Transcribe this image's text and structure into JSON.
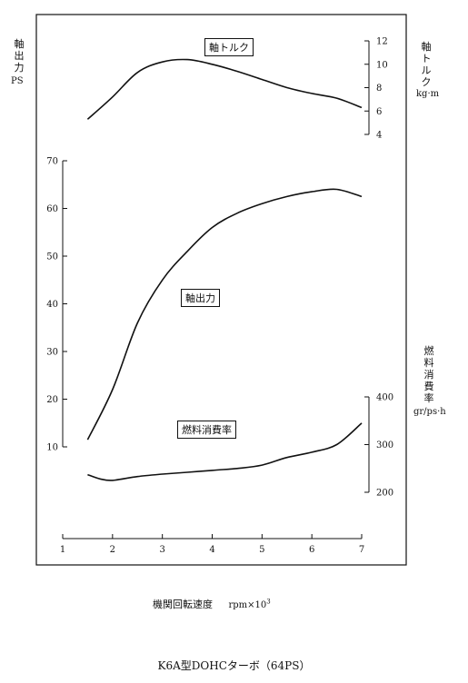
{
  "chart_data": {
    "type": "line",
    "caption": "K6A型DOHCターボ（64PS）",
    "xlabel": "機関回転速度",
    "xunit": "rpm×10",
    "xunit_exp": "3",
    "xticks": [
      1,
      2,
      3,
      4,
      5,
      6,
      7
    ],
    "xlim": [
      1,
      7
    ],
    "axes": {
      "torque": {
        "label": "軸トルク",
        "unit": "kg·m",
        "ticks": [
          4,
          6,
          8,
          10,
          12
        ],
        "ylim": [
          4,
          12
        ]
      },
      "power": {
        "label": "軸出力",
        "unit": "PS",
        "ticks": [
          10,
          20,
          30,
          40,
          50,
          60,
          70
        ],
        "ylim": [
          10,
          70
        ]
      },
      "fuel": {
        "label": "燃料消費率",
        "unit": "gr/ps·h",
        "ticks": [
          200,
          300,
          400
        ],
        "ylim": [
          200,
          400
        ]
      }
    },
    "series": [
      {
        "name": "軸トルク",
        "axis": "torque",
        "x": [
          1.5,
          2.0,
          2.5,
          3.0,
          3.5,
          4.0,
          4.5,
          5.0,
          5.5,
          6.0,
          6.5,
          7.0
        ],
        "y": [
          5.3,
          7.2,
          9.3,
          10.2,
          10.4,
          10.0,
          9.4,
          8.7,
          8.0,
          7.5,
          7.1,
          6.3
        ]
      },
      {
        "name": "軸出力",
        "axis": "power",
        "x": [
          1.5,
          2.0,
          2.5,
          3.0,
          3.5,
          4.0,
          4.5,
          5.0,
          5.5,
          6.0,
          6.5,
          7.0
        ],
        "y": [
          11.5,
          22,
          36,
          45,
          51,
          56,
          59,
          61,
          62.5,
          63.5,
          64,
          62.5
        ]
      },
      {
        "name": "燃料消費率",
        "axis": "fuel",
        "x": [
          1.5,
          1.75,
          2.0,
          2.5,
          3.0,
          3.5,
          4.0,
          4.5,
          5.0,
          5.5,
          6.0,
          6.5,
          7.0
        ],
        "y": [
          237,
          228,
          225,
          233,
          238,
          242,
          246,
          250,
          257,
          273,
          284,
          300,
          345
        ]
      }
    ]
  },
  "labels": {
    "torque_axis_vertical": [
      "軸",
      "ト",
      "ル",
      "ク"
    ],
    "power_axis_vertical": [
      "軸",
      "出",
      "力"
    ],
    "power_axis_unit": "PS",
    "fuel_axis_vertical": [
      "燃",
      "料",
      "消",
      "費",
      "率"
    ]
  }
}
